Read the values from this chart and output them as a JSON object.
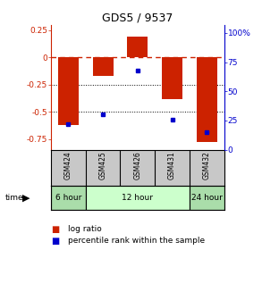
{
  "title": "GDS5 / 9537",
  "samples": [
    "GSM424",
    "GSM425",
    "GSM426",
    "GSM431",
    "GSM432"
  ],
  "log_ratio": [
    -0.62,
    -0.17,
    0.19,
    -0.38,
    -0.78
  ],
  "percentile_rank": [
    22,
    30,
    68,
    26,
    15
  ],
  "bar_color": "#cc2200",
  "dot_color": "#0000cc",
  "ylim_left": [
    -0.85,
    0.3
  ],
  "ylim_right": [
    0,
    107
  ],
  "left_ticks": [
    0.25,
    0,
    -0.25,
    -0.5,
    -0.75
  ],
  "right_ticks": [
    100,
    75,
    50,
    25,
    0
  ],
  "hline_zero_color": "#cc2200",
  "hline_dotted_color": "#000000",
  "background_color": "#ffffff",
  "sample_box_color": "#c8c8c8",
  "time_spans": [
    {
      "label": "6 hour",
      "start": 0,
      "end": 0,
      "color": "#aaddaa"
    },
    {
      "label": "12 hour",
      "start": 1,
      "end": 3,
      "color": "#ccffcc"
    },
    {
      "label": "24 hour",
      "start": 4,
      "end": 4,
      "color": "#aaddaa"
    }
  ]
}
